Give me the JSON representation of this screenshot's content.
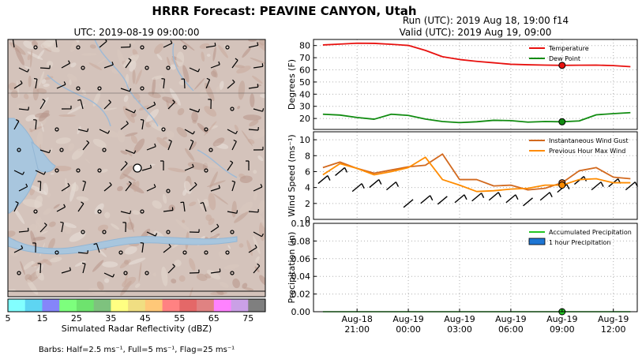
{
  "title": "HRRR Forecast: PEAVINE CANYON, Utah",
  "map": {
    "utc_label": "UTC: 2019-08-19 09:00:00",
    "colorbar": {
      "label": "Simulated Radar Reflectivity (dBZ)",
      "ticks": [
        "5",
        "15",
        "25",
        "35",
        "45",
        "55",
        "65",
        "75"
      ],
      "colors": [
        "#82ffff",
        "#5ed5f2",
        "#8585fa",
        "#7dff7d",
        "#6ee36e",
        "#7ec27e",
        "#ffff82",
        "#f0de82",
        "#ffc878",
        "#ff8282",
        "#e46868",
        "#e08282",
        "#ff82ff",
        "#caa0e6",
        "#7f7f7f"
      ]
    },
    "barbs_note": "Barbs: Half=2.5 ms⁻¹, Full=5 ms⁻¹, Flag=25 ms⁻¹"
  },
  "run_label": "Run (UTC): 2019 Aug 18, 19:00 f14",
  "valid_label": "Valid (UTC): 2019 Aug 19, 09:00",
  "x_ticks": [
    {
      "line1": "Aug-18",
      "line2": "21:00",
      "hour": 21
    },
    {
      "line1": "Aug-19",
      "line2": "00:00",
      "hour": 24
    },
    {
      "line1": "Aug-19",
      "line2": "03:00",
      "hour": 27
    },
    {
      "line1": "Aug-19",
      "line2": "06:00",
      "hour": 30
    },
    {
      "line1": "Aug-19",
      "line2": "09:00",
      "hour": 33
    },
    {
      "line1": "Aug-19",
      "line2": "12:00",
      "hour": 36
    }
  ],
  "chart_data": [
    {
      "type": "line",
      "ylabel": "Degrees (F)",
      "ylim": [
        11,
        85
      ],
      "yticks": [
        20,
        30,
        40,
        50,
        60,
        70,
        80
      ],
      "x": [
        19,
        20,
        21,
        22,
        23,
        24,
        25,
        26,
        27,
        28,
        29,
        30,
        31,
        32,
        33,
        34,
        35,
        36,
        37
      ],
      "series": [
        {
          "name": "Temperature",
          "color": "#e8110f",
          "values": [
            80.5,
            81.2,
            81.9,
            81.8,
            81.0,
            80.1,
            76.0,
            70.8,
            68.5,
            67.0,
            65.8,
            64.6,
            64.2,
            63.9,
            63.7,
            63.8,
            63.9,
            63.5,
            62.6
          ]
        },
        {
          "name": "Dew Point",
          "color": "#118c11",
          "values": [
            23.5,
            22.8,
            20.8,
            19.4,
            23.5,
            22.5,
            19.5,
            17.5,
            16.6,
            17.3,
            18.5,
            18.2,
            17.0,
            17.5,
            17.3,
            18.0,
            23.0,
            24.0,
            24.8
          ]
        }
      ],
      "legend": "top-right",
      "grid": true
    },
    {
      "type": "line",
      "ylabel": "Wind Speed (ms⁻¹)",
      "ylim": [
        0,
        11
      ],
      "yticks": [
        0,
        2,
        4,
        6,
        8,
        10
      ],
      "x": [
        19,
        20,
        21,
        22,
        23,
        24,
        25,
        26,
        27,
        28,
        29,
        30,
        31,
        32,
        33,
        34,
        35,
        36,
        37
      ],
      "series": [
        {
          "name": "Instantaneous Wind Gust",
          "color": "#d2691e",
          "values": [
            6.5,
            7.2,
            6.4,
            5.8,
            6.2,
            6.6,
            6.8,
            8.2,
            5.0,
            5.0,
            4.2,
            4.3,
            3.7,
            3.9,
            4.6,
            6.1,
            6.5,
            5.3,
            5.1
          ]
        },
        {
          "name": "Previous Hour Max Wind",
          "color": "#ff8c00",
          "values": [
            5.6,
            7.0,
            6.4,
            5.6,
            6.0,
            6.5,
            7.8,
            5.0,
            4.3,
            3.5,
            3.6,
            3.8,
            3.9,
            4.3,
            4.3,
            5.0,
            5.1,
            4.6,
            4.6
          ]
        }
      ],
      "barb_speeds": [
        5.0,
        6.0,
        4.0,
        4.5,
        4.2,
        2.0,
        2.5,
        2.4,
        2.6,
        2.8,
        2.9,
        2.6,
        2.2,
        2.9,
        3.9,
        4.9,
        4.2,
        4.6,
        4.2
      ],
      "legend": "top-right",
      "grid": true
    },
    {
      "type": "bar",
      "ylabel": "Precipitation (in)",
      "ylim": [
        0,
        0.1
      ],
      "yticks": [
        0.0,
        0.02,
        0.04,
        0.06,
        0.08,
        0.1
      ],
      "x": [
        19,
        20,
        21,
        22,
        23,
        24,
        25,
        26,
        27,
        28,
        29,
        30,
        31,
        32,
        33,
        34,
        35,
        36,
        37
      ],
      "series": [
        {
          "name": "Accumulated Precipitation",
          "color": "#23c623",
          "values": [
            0,
            0,
            0,
            0,
            0,
            0,
            0,
            0,
            0,
            0,
            0,
            0,
            0,
            0,
            0,
            0,
            0,
            0,
            0
          ]
        },
        {
          "name": "1 hour Precipitation",
          "color": "#1e76d4",
          "values": [
            0,
            0,
            0,
            0,
            0,
            0,
            0,
            0,
            0,
            0,
            0,
            0,
            0,
            0,
            0,
            0,
            0,
            0,
            0
          ]
        }
      ],
      "legend": "top-right",
      "grid": true
    }
  ],
  "current_hour": 33
}
